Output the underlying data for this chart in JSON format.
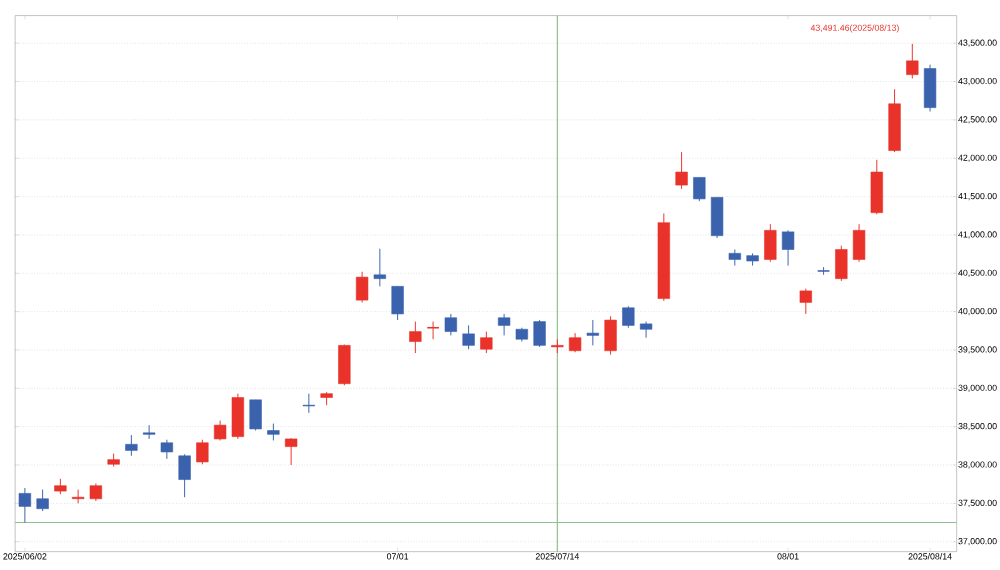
{
  "chart_data": {
    "type": "candlestick",
    "categories": [
      "2025/06/02",
      null,
      null,
      null,
      null,
      null,
      null,
      null,
      null,
      null,
      null,
      null,
      null,
      null,
      null,
      null,
      null,
      null,
      null,
      null,
      null,
      "07/01",
      null,
      null,
      null,
      null,
      null,
      null,
      null,
      null,
      "2025/07/14",
      null,
      null,
      null,
      null,
      null,
      null,
      null,
      null,
      null,
      null,
      null,
      null,
      "08/01",
      null,
      null,
      null,
      null,
      null,
      null,
      null,
      "2025/08/14"
    ],
    "ohlc": [
      [
        37630,
        37700,
        37250,
        37460
      ],
      [
        37560,
        37680,
        37400,
        37430
      ],
      [
        37660,
        37820,
        37620,
        37730
      ],
      [
        37560,
        37680,
        37500,
        37580
      ],
      [
        37560,
        37760,
        37530,
        37730
      ],
      [
        38010,
        38150,
        37980,
        38070
      ],
      [
        38270,
        38390,
        38120,
        38190
      ],
      [
        38420,
        38520,
        38340,
        38400
      ],
      [
        38290,
        38330,
        38080,
        38170
      ],
      [
        38120,
        38140,
        37580,
        37810
      ],
      [
        38040,
        38330,
        38010,
        38290
      ],
      [
        38340,
        38580,
        38320,
        38520
      ],
      [
        38370,
        38930,
        38340,
        38880
      ],
      [
        38850,
        38850,
        38450,
        38470
      ],
      [
        38450,
        38540,
        38320,
        38400
      ],
      [
        38240,
        38350,
        38000,
        38340
      ],
      [
        38780,
        38930,
        38680,
        38770
      ],
      [
        38880,
        38950,
        38780,
        38930
      ],
      [
        39060,
        39570,
        39040,
        39560
      ],
      [
        40150,
        40520,
        40120,
        40450
      ],
      [
        40480,
        40820,
        40330,
        40430
      ],
      [
        40330,
        40330,
        39890,
        39970
      ],
      [
        39610,
        39870,
        39460,
        39740
      ],
      [
        39790,
        39870,
        39640,
        39790
      ],
      [
        39920,
        39970,
        39690,
        39740
      ],
      [
        39710,
        39820,
        39510,
        39560
      ],
      [
        39510,
        39740,
        39460,
        39660
      ],
      [
        39920,
        39970,
        39690,
        39820
      ],
      [
        39770,
        39790,
        39610,
        39640
      ],
      [
        39870,
        39890,
        39540,
        39560
      ],
      [
        39540,
        39640,
        39460,
        39560
      ],
      [
        39490,
        39720,
        39470,
        39660
      ],
      [
        39720,
        39890,
        39560,
        39690
      ],
      [
        39490,
        39940,
        39440,
        39890
      ],
      [
        40050,
        40070,
        39790,
        39820
      ],
      [
        39840,
        39870,
        39660,
        39770
      ],
      [
        40170,
        41280,
        40140,
        41160
      ],
      [
        41650,
        42080,
        41600,
        41820
      ],
      [
        41750,
        41750,
        41440,
        41470
      ],
      [
        41490,
        41490,
        40960,
        40990
      ],
      [
        40760,
        40810,
        40600,
        40680
      ],
      [
        40730,
        40760,
        40600,
        40660
      ],
      [
        40680,
        41140,
        40650,
        41060
      ],
      [
        41040,
        41060,
        40600,
        40810
      ],
      [
        40120,
        40300,
        39970,
        40270
      ],
      [
        40530,
        40580,
        40480,
        40530
      ],
      [
        40430,
        40860,
        40400,
        40810
      ],
      [
        40680,
        41140,
        40650,
        41060
      ],
      [
        41290,
        41980,
        41270,
        41820
      ],
      [
        42100,
        42900,
        42080,
        42710
      ],
      [
        43090,
        43491.46,
        43040,
        43270
      ],
      [
        43170,
        43220,
        42610,
        42660
      ]
    ],
    "colors": [
      "#3a62ad",
      "#3a62ad",
      "#e8322a",
      "#e8322a",
      "#e8322a",
      "#e8322a",
      "#3a62ad",
      "#3a62ad",
      "#3a62ad",
      "#3a62ad",
      "#e8322a",
      "#e8322a",
      "#e8322a",
      "#3a62ad",
      "#3a62ad",
      "#e8322a",
      "#3a62ad",
      "#e8322a",
      "#e8322a",
      "#e8322a",
      "#3a62ad",
      "#3a62ad",
      "#e8322a",
      "#e8322a",
      "#3a62ad",
      "#3a62ad",
      "#e8322a",
      "#3a62ad",
      "#3a62ad",
      "#3a62ad",
      "#e8322a",
      "#e8322a",
      "#3a62ad",
      "#e8322a",
      "#3a62ad",
      "#3a62ad",
      "#e8322a",
      "#e8322a",
      "#3a62ad",
      "#3a62ad",
      "#3a62ad",
      "#3a62ad",
      "#e8322a",
      "#3a62ad",
      "#e8322a",
      "#3a62ad",
      "#e8322a",
      "#e8322a",
      "#e8322a",
      "#e8322a",
      "#e8322a",
      "#3a62ad"
    ],
    "ylim": [
      36870,
      43860
    ],
    "yticks": [
      {
        "value": 37000,
        "label": "37,000.00"
      },
      {
        "value": 37500,
        "label": "37,500.00"
      },
      {
        "value": 38000,
        "label": "38,000.00"
      },
      {
        "value": 38500,
        "label": "38,500.00"
      },
      {
        "value": 39000,
        "label": "39,000.00"
      },
      {
        "value": 39500,
        "label": "39,500.00"
      },
      {
        "value": 40000,
        "label": "40,000.00"
      },
      {
        "value": 40500,
        "label": "40,500.00"
      },
      {
        "value": 41000,
        "label": "41,000.00"
      },
      {
        "value": 41500,
        "label": "41,500.00"
      },
      {
        "value": 42000,
        "label": "42,000.00"
      },
      {
        "value": 42500,
        "label": "42,500.00"
      },
      {
        "value": 43000,
        "label": "43,000.00"
      },
      {
        "value": 43500,
        "label": "43,500.00"
      }
    ],
    "grid": "y",
    "ref_lines": [
      {
        "axis": "x",
        "value": "2025/07/14",
        "color": "#8fbf8f"
      },
      {
        "axis": "y",
        "value": 37250,
        "color": "#8fbf8f"
      }
    ],
    "annotations": [
      "43,491.46(2025/08/13)"
    ]
  }
}
